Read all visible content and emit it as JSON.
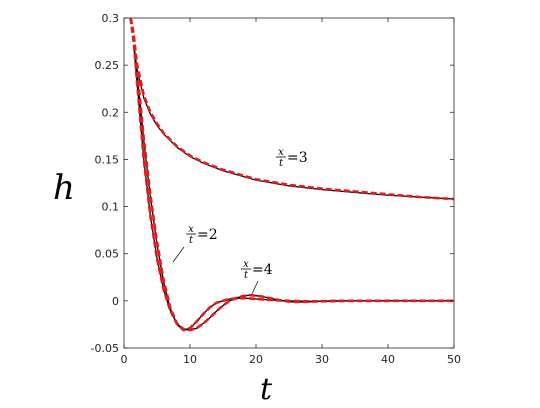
{
  "chart_data": {
    "type": "line",
    "title": "",
    "xlabel": "t",
    "ylabel": "h",
    "xlim": [
      0,
      50
    ],
    "ylim": [
      -0.05,
      0.3
    ],
    "grid": false,
    "x_ticks": [
      "0",
      "10",
      "20",
      "30",
      "40",
      "50"
    ],
    "y_ticks": [
      "-0.05",
      "0",
      "0.05",
      "0.1",
      "0.15",
      "0.2",
      "0.25",
      "0.3"
    ],
    "x_tick_values": [
      0,
      10,
      20,
      30,
      40,
      50
    ],
    "y_tick_values": [
      -0.05,
      0,
      0.05,
      0.1,
      0.15,
      0.2,
      0.25,
      0.3
    ],
    "annotations": [
      {
        "num": "x",
        "den": "t",
        "value": "=3"
      },
      {
        "num": "x",
        "den": "t",
        "value": "=2"
      },
      {
        "num": "x",
        "den": "t",
        "value": "=4"
      }
    ],
    "colors": {
      "exact": "#000000",
      "approx": "#e41a1c",
      "axes": "#262626"
    },
    "series": [
      {
        "key": "x/t=3",
        "style": "solid",
        "color": "#000000",
        "x": [
          1.5,
          2,
          3,
          4,
          5,
          6,
          8,
          10,
          12,
          15,
          18,
          20,
          25,
          30,
          35,
          40,
          45,
          50
        ],
        "y": [
          0.27,
          0.245,
          0.215,
          0.198,
          0.186,
          0.177,
          0.163,
          0.153,
          0.146,
          0.138,
          0.132,
          0.128,
          0.122,
          0.118,
          0.115,
          0.112,
          0.11,
          0.108
        ]
      },
      {
        "key": "x/t=3",
        "style": "dashed",
        "color": "#e41a1c",
        "x": [
          1.0,
          1.2,
          1.5,
          2,
          3,
          4,
          5,
          6,
          8,
          10,
          12,
          15,
          18,
          20,
          25,
          30,
          35,
          40,
          45,
          50
        ],
        "y": [
          0.3,
          0.29,
          0.275,
          0.25,
          0.218,
          0.2,
          0.188,
          0.178,
          0.164,
          0.154,
          0.147,
          0.139,
          0.133,
          0.129,
          0.123,
          0.119,
          0.116,
          0.113,
          0.11,
          0.108
        ]
      },
      {
        "key": "x/t=2",
        "style": "solid",
        "color": "#000000",
        "x": [
          1.5,
          2,
          3,
          4,
          5,
          6,
          7,
          8,
          9,
          10,
          11,
          12,
          13,
          14,
          16,
          18,
          20,
          22,
          25,
          28,
          30,
          35,
          40,
          45,
          50
        ],
        "y": [
          0.27,
          0.24,
          0.17,
          0.11,
          0.06,
          0.02,
          -0.008,
          -0.025,
          -0.031,
          -0.029,
          -0.022,
          -0.014,
          -0.007,
          -0.002,
          0.002,
          0.003,
          0.002,
          0.001,
          0.0,
          -0.0005,
          -0.0005,
          0.0,
          0.0,
          0.0,
          0.0
        ]
      },
      {
        "key": "x/t=2",
        "style": "dashed",
        "color": "#e41a1c",
        "x": [
          1.0,
          1.3,
          1.6,
          2,
          3,
          4,
          5,
          6,
          7,
          8,
          9,
          10,
          11,
          12,
          13,
          14,
          16,
          18,
          20,
          22,
          25,
          28,
          30,
          35,
          40,
          45,
          50
        ],
        "y": [
          0.3,
          0.29,
          0.275,
          0.245,
          0.172,
          0.112,
          0.062,
          0.022,
          -0.007,
          -0.024,
          -0.031,
          -0.029,
          -0.022,
          -0.014,
          -0.007,
          -0.002,
          0.002,
          0.003,
          0.002,
          0.001,
          0.0,
          -0.0005,
          -0.0005,
          0.0,
          0.0,
          0.0,
          0.0
        ]
      },
      {
        "key": "x/t=4",
        "style": "solid",
        "color": "#000000",
        "x": [
          1.5,
          2,
          3,
          4,
          5,
          6,
          7,
          8,
          9,
          10,
          11,
          12,
          13,
          14,
          15,
          16,
          17,
          18,
          19,
          20,
          21,
          22,
          23,
          24,
          25,
          26,
          27,
          28,
          29,
          30,
          32,
          35,
          40,
          45,
          50
        ],
        "y": [
          0.27,
          0.23,
          0.15,
          0.09,
          0.045,
          0.012,
          -0.01,
          -0.024,
          -0.03,
          -0.031,
          -0.029,
          -0.024,
          -0.018,
          -0.011,
          -0.005,
          0.0,
          0.003,
          0.005,
          0.006,
          0.0055,
          0.0045,
          0.003,
          0.0015,
          0.0002,
          -0.0008,
          -0.0012,
          -0.0012,
          -0.001,
          -0.0006,
          -0.0003,
          0.0,
          0.0,
          0.0,
          0.0,
          0.0
        ]
      },
      {
        "key": "x/t=4",
        "style": "dashed",
        "color": "#e41a1c",
        "x": [
          1.0,
          1.3,
          1.6,
          2,
          3,
          4,
          5,
          6,
          7,
          8,
          9,
          10,
          11,
          12,
          13,
          14,
          15,
          16,
          17,
          18,
          19,
          20,
          21,
          22,
          23,
          24,
          25,
          26,
          27,
          28,
          29,
          30,
          32,
          35,
          40,
          45,
          50
        ],
        "y": [
          0.3,
          0.285,
          0.265,
          0.23,
          0.15,
          0.09,
          0.045,
          0.012,
          -0.01,
          -0.024,
          -0.03,
          -0.031,
          -0.029,
          -0.024,
          -0.018,
          -0.011,
          -0.005,
          0.0,
          0.003,
          0.005,
          0.006,
          0.0055,
          0.0045,
          0.003,
          0.0015,
          0.0002,
          -0.0008,
          -0.0012,
          -0.0012,
          -0.001,
          -0.0006,
          -0.0003,
          0.0,
          0.0,
          0.0,
          0.0,
          0.0
        ]
      }
    ]
  }
}
